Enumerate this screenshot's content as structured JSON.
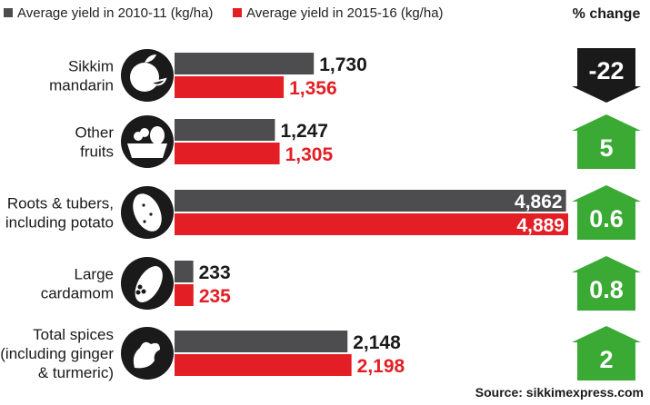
{
  "chart_data": {
    "type": "bar",
    "orientation": "horizontal",
    "categories": [
      [
        "Sikkim",
        "mandarin"
      ],
      [
        "Other",
        "fruits"
      ],
      [
        "Roots & tubers,",
        "including potato"
      ],
      [
        "Large",
        "cardamom"
      ],
      [
        "Total spices",
        "(including ginger",
        "& turmeric)"
      ]
    ],
    "series": [
      {
        "name": "Average yield in 2010-11 (kg/ha)",
        "color": "#4d4d4f",
        "values": [
          1730,
          1247,
          4862,
          233,
          2148
        ],
        "labels": [
          "1,730",
          "1,247",
          "4,862",
          "233",
          "2,148"
        ]
      },
      {
        "name": "Average yield in 2015-16 (kg/ha)",
        "color": "#e31e24",
        "values": [
          1356,
          1305,
          4889,
          235,
          2198
        ],
        "labels": [
          "1,356",
          "1,305",
          "4,889",
          "235",
          "2,198"
        ]
      }
    ],
    "pct_change": {
      "header": "% change",
      "values": [
        "-22",
        "5",
        "0.6",
        "0.8",
        "2"
      ],
      "direction": [
        "down",
        "up",
        "up",
        "up",
        "up"
      ],
      "colors": {
        "up": "#3aaa35",
        "down": "#1a1a1a"
      }
    },
    "icons": [
      "orange-icon",
      "fruit-basket-icon",
      "potato-icon",
      "cardamom-icon",
      "ginger-icon"
    ],
    "source": "Source: sikkimexpress.com",
    "xlim": [
      0,
      4889
    ],
    "grid": false,
    "legend_position": "top-left"
  }
}
